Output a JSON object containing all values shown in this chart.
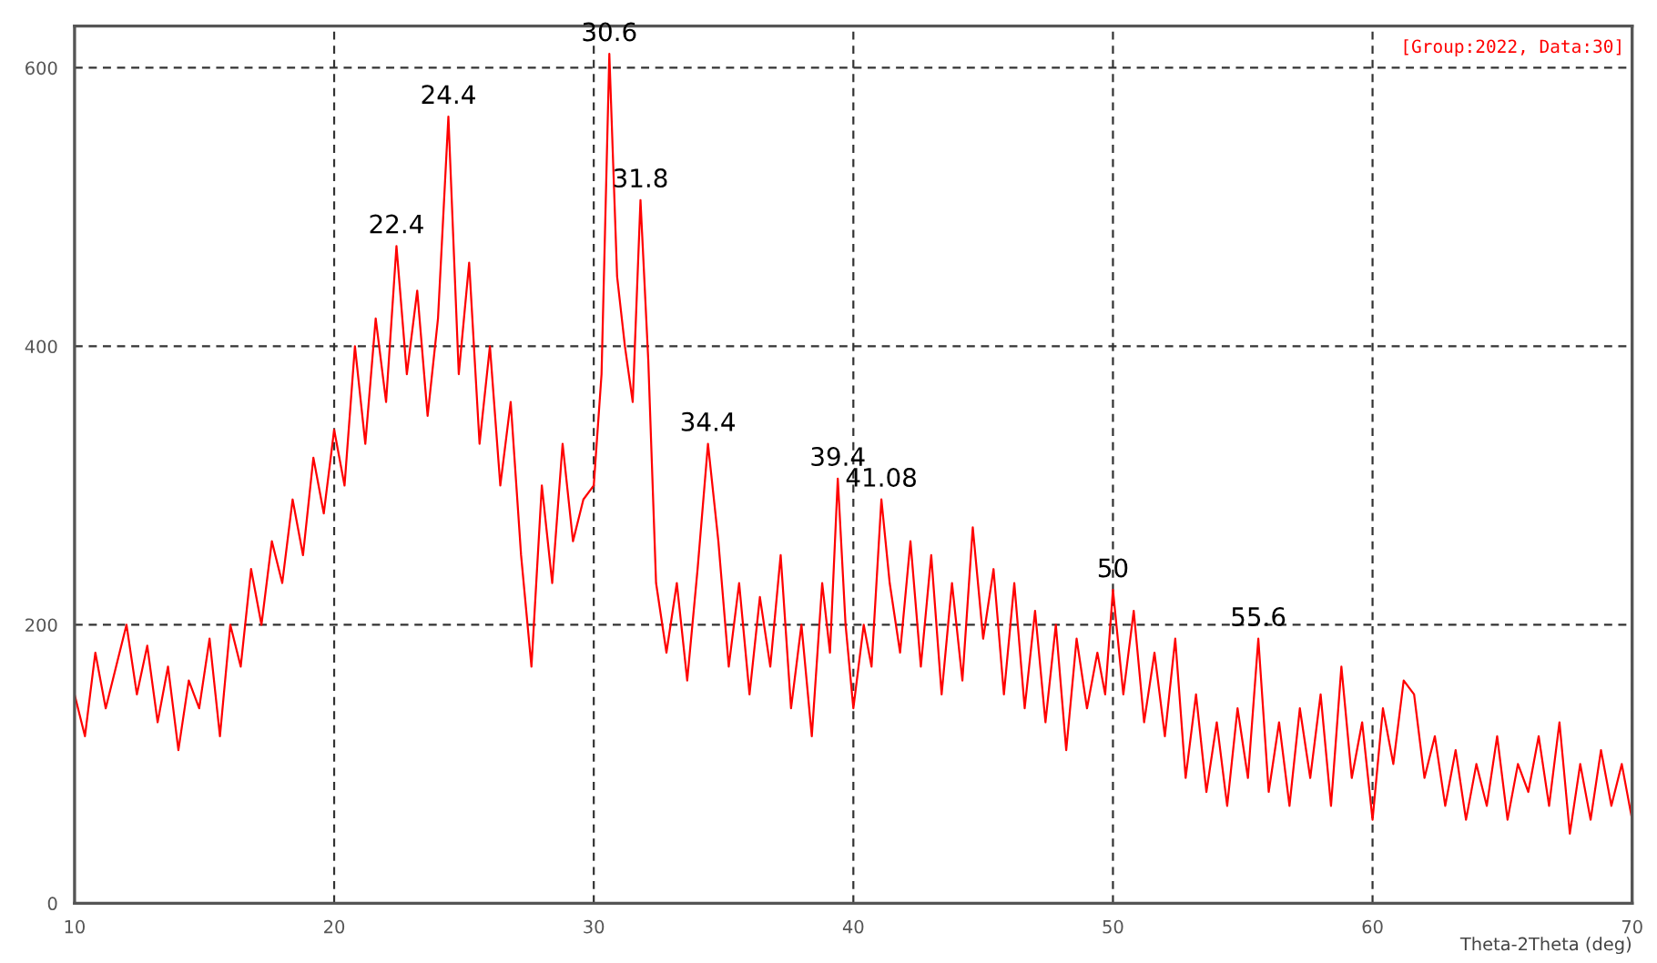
{
  "chart_data": {
    "type": "line",
    "xlabel": "Theta-2Theta (deg)",
    "xlim": [
      10,
      70
    ],
    "xticks": [
      10,
      20,
      30,
      40,
      50,
      60,
      70
    ],
    "ylim": [
      0,
      630
    ],
    "yticks": [
      0,
      200,
      400,
      600
    ],
    "grid": true,
    "legend": false,
    "series": [
      {
        "color": "#ff0000",
        "x": [
          10,
          10.4,
          10.8,
          11.2,
          11.6,
          12,
          12.4,
          12.8,
          13.2,
          13.6,
          14,
          14.4,
          14.8,
          15.2,
          15.6,
          16,
          16.4,
          16.8,
          17.2,
          17.6,
          18,
          18.4,
          18.8,
          19.2,
          19.6,
          20,
          20.4,
          20.8,
          21.2,
          21.6,
          22,
          22.4,
          22.8,
          23.2,
          23.6,
          24,
          24.4,
          24.8,
          25.2,
          25.6,
          26,
          26.4,
          26.8,
          27.2,
          27.6,
          28,
          28.4,
          28.8,
          29.2,
          29.6,
          30,
          30.3,
          30.6,
          30.9,
          31.2,
          31.5,
          31.8,
          32.1,
          32.4,
          32.8,
          33.2,
          33.6,
          34,
          34.4,
          34.8,
          35.2,
          35.6,
          36,
          36.4,
          36.8,
          37.2,
          37.6,
          38,
          38.4,
          38.8,
          39.1,
          39.4,
          39.7,
          40,
          40.4,
          40.7,
          41.08,
          41.4,
          41.8,
          42.2,
          42.6,
          43,
          43.4,
          43.8,
          44.2,
          44.6,
          45,
          45.4,
          45.8,
          46.2,
          46.6,
          47,
          47.4,
          47.8,
          48.2,
          48.6,
          49,
          49.4,
          49.7,
          50,
          50.4,
          50.8,
          51.2,
          51.6,
          52,
          52.4,
          52.8,
          53.2,
          53.6,
          54,
          54.4,
          54.8,
          55.2,
          55.6,
          56,
          56.4,
          56.8,
          57.2,
          57.6,
          58,
          58.4,
          58.8,
          59.2,
          59.6,
          60,
          60.4,
          60.8,
          61.2,
          61.6,
          62,
          62.4,
          62.8,
          63.2,
          63.6,
          64,
          64.4,
          64.8,
          65.2,
          65.6,
          66,
          66.4,
          66.8,
          67.2,
          67.6,
          68,
          68.4,
          68.8,
          69.2,
          69.6,
          70
        ],
        "values": [
          150,
          120,
          180,
          140,
          170,
          200,
          150,
          185,
          130,
          170,
          110,
          160,
          140,
          190,
          120,
          200,
          170,
          240,
          200,
          260,
          230,
          290,
          250,
          320,
          280,
          340,
          300,
          400,
          330,
          420,
          360,
          472,
          380,
          440,
          350,
          420,
          565,
          380,
          460,
          330,
          400,
          300,
          360,
          250,
          170,
          300,
          230,
          330,
          260,
          290,
          300,
          380,
          610,
          450,
          400,
          360,
          505,
          390,
          230,
          180,
          230,
          160,
          240,
          330,
          260,
          170,
          230,
          150,
          220,
          170,
          250,
          140,
          200,
          120,
          230,
          180,
          305,
          200,
          140,
          200,
          170,
          290,
          230,
          180,
          260,
          170,
          250,
          150,
          230,
          160,
          270,
          190,
          240,
          150,
          230,
          140,
          210,
          130,
          200,
          110,
          190,
          140,
          180,
          150,
          225,
          150,
          210,
          130,
          180,
          120,
          190,
          90,
          150,
          80,
          130,
          70,
          140,
          90,
          190,
          80,
          130,
          70,
          140,
          90,
          150,
          70,
          170,
          90,
          130,
          60,
          140,
          100,
          160,
          150,
          90,
          120,
          70,
          110,
          60,
          100,
          70,
          120,
          60,
          100,
          80,
          120,
          70,
          130,
          50,
          100,
          60,
          110,
          70,
          100,
          60
        ]
      }
    ],
    "annotations": [
      "[Group:2022, Data:30]",
      {
        "text": "22.4",
        "x": 22.4,
        "y": 472
      },
      {
        "text": "24.4",
        "x": 24.4,
        "y": 565
      },
      {
        "text": "30.6",
        "x": 30.6,
        "y": 610
      },
      {
        "text": "31.8",
        "x": 31.8,
        "y": 505
      },
      {
        "text": "34.4",
        "x": 34.4,
        "y": 330
      },
      {
        "text": "39.4",
        "x": 39.4,
        "y": 305
      },
      {
        "text": "41.08",
        "x": 41.08,
        "y": 290
      },
      {
        "text": "50",
        "x": 50,
        "y": 225
      },
      {
        "text": "55.6",
        "x": 55.6,
        "y": 190
      }
    ]
  }
}
